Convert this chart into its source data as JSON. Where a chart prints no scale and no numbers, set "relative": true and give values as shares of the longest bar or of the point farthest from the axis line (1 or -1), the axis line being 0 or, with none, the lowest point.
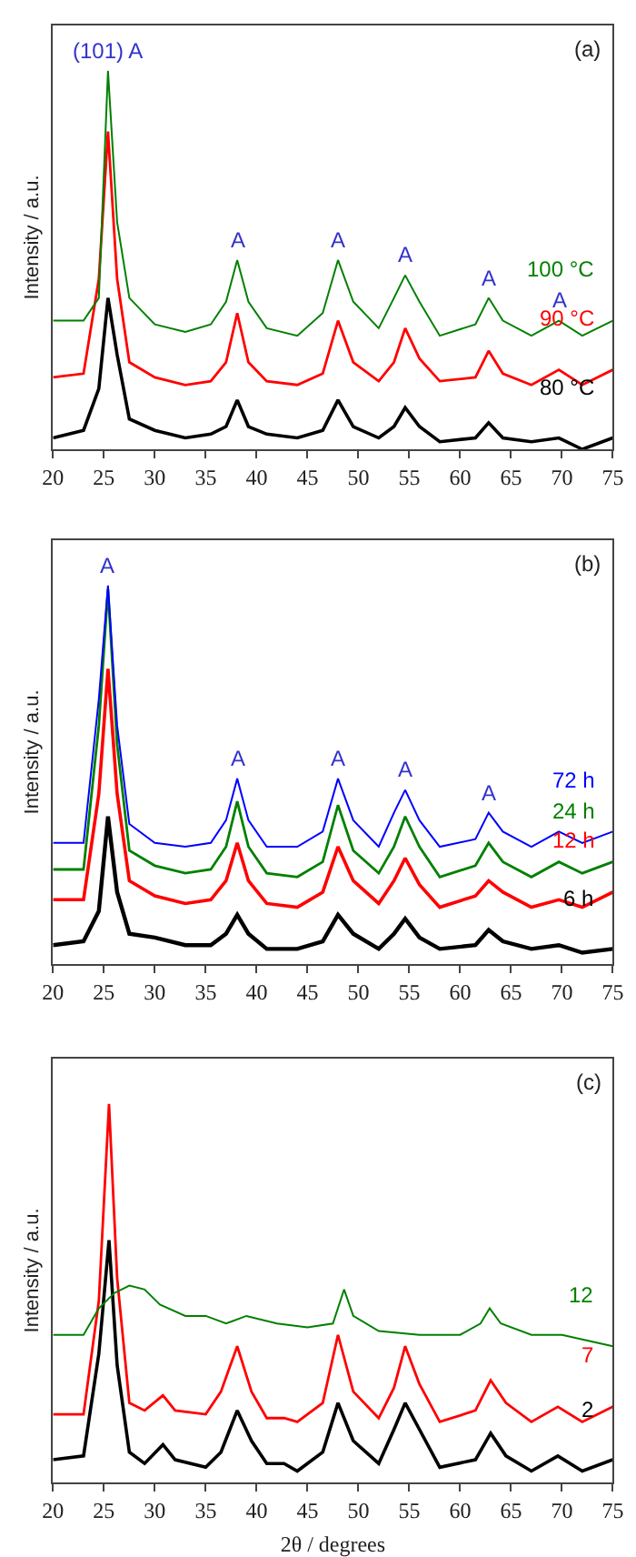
{
  "chart_data": [
    {
      "type": "line",
      "relative": true,
      "ylabel": "Intensity / a.u.",
      "xlim": [
        20,
        75
      ],
      "xticks": [
        20,
        25,
        30,
        35,
        40,
        45,
        50,
        55,
        60,
        65,
        70,
        75
      ],
      "x": [
        20,
        23,
        24.5,
        25.4,
        26.3,
        27.5,
        30,
        33,
        35.5,
        37,
        38.1,
        39.2,
        41,
        44,
        46.5,
        48,
        49.5,
        52,
        53.5,
        54.6,
        56,
        58,
        61.5,
        62.8,
        64.2,
        67,
        69.7,
        72,
        75
      ],
      "series": [
        {
          "name": "80 °C",
          "color": "#000000",
          "values": [
            0.03,
            0.05,
            0.16,
            0.4,
            0.25,
            0.08,
            0.05,
            0.03,
            0.04,
            0.06,
            0.13,
            0.06,
            0.04,
            0.03,
            0.05,
            0.13,
            0.06,
            0.03,
            0.06,
            0.11,
            0.06,
            0.02,
            0.03,
            0.07,
            0.03,
            0.02,
            0.03,
            0.0,
            0.03
          ]
        },
        {
          "name": "90 °C",
          "color": "#ff0000",
          "values": [
            0.19,
            0.2,
            0.45,
            0.84,
            0.45,
            0.23,
            0.19,
            0.17,
            0.18,
            0.23,
            0.36,
            0.23,
            0.18,
            0.17,
            0.2,
            0.34,
            0.23,
            0.18,
            0.23,
            0.32,
            0.24,
            0.18,
            0.19,
            0.26,
            0.2,
            0.17,
            0.21,
            0.17,
            0.21
          ]
        },
        {
          "name": "100 °C",
          "color": "#008000",
          "values": [
            0.34,
            0.34,
            0.4,
            1.0,
            0.6,
            0.4,
            0.33,
            0.31,
            0.33,
            0.39,
            0.5,
            0.39,
            0.32,
            0.3,
            0.36,
            0.5,
            0.39,
            0.32,
            0.4,
            0.46,
            0.39,
            0.3,
            0.33,
            0.4,
            0.34,
            0.3,
            0.34,
            0.3,
            0.34
          ]
        }
      ],
      "annotations": [
        {
          "text": "(101) A",
          "x": 25.4,
          "y": 1.0
        },
        {
          "text": "A",
          "x": 38.1,
          "y": 0.5
        },
        {
          "text": "A",
          "x": 48,
          "y": 0.5
        },
        {
          "text": "A",
          "x": 54.6,
          "y": 0.46
        },
        {
          "text": "A",
          "x": 62.8,
          "y": 0.4
        },
        {
          "text": "A",
          "x": 69.7,
          "y": 0.34
        },
        "(a)"
      ]
    },
    {
      "type": "line",
      "relative": true,
      "ylabel": "Intensity / a.u.",
      "xlim": [
        20,
        75
      ],
      "xticks": [
        20,
        25,
        30,
        35,
        40,
        45,
        50,
        55,
        60,
        65,
        70,
        75
      ],
      "x": [
        20,
        23,
        24.5,
        25.4,
        26.3,
        27.5,
        30,
        33,
        35.5,
        37,
        38.1,
        39.2,
        41,
        44,
        46.5,
        48,
        49.5,
        52,
        53.5,
        54.6,
        56,
        58,
        61.5,
        62.8,
        64.2,
        67,
        69.7,
        72,
        75
      ],
      "series": [
        {
          "name": "6 h",
          "color": "#000000",
          "values": [
            0.05,
            0.06,
            0.14,
            0.39,
            0.19,
            0.08,
            0.07,
            0.05,
            0.05,
            0.08,
            0.13,
            0.08,
            0.04,
            0.04,
            0.06,
            0.13,
            0.08,
            0.04,
            0.08,
            0.12,
            0.07,
            0.04,
            0.05,
            0.09,
            0.06,
            0.04,
            0.05,
            0.03,
            0.04
          ]
        },
        {
          "name": "12 h",
          "color": "#ff0000",
          "values": [
            0.17,
            0.17,
            0.45,
            0.78,
            0.45,
            0.22,
            0.18,
            0.16,
            0.17,
            0.22,
            0.32,
            0.22,
            0.16,
            0.15,
            0.19,
            0.31,
            0.22,
            0.16,
            0.22,
            0.28,
            0.21,
            0.15,
            0.18,
            0.22,
            0.19,
            0.15,
            0.17,
            0.15,
            0.19
          ]
        },
        {
          "name": "24 h",
          "color": "#008000",
          "values": [
            0.25,
            0.25,
            0.63,
            0.99,
            0.58,
            0.3,
            0.26,
            0.24,
            0.25,
            0.31,
            0.43,
            0.31,
            0.24,
            0.23,
            0.27,
            0.42,
            0.3,
            0.24,
            0.31,
            0.39,
            0.31,
            0.23,
            0.26,
            0.32,
            0.27,
            0.23,
            0.27,
            0.24,
            0.27
          ]
        },
        {
          "name": "72 h",
          "color": "#0000ff",
          "values": [
            0.32,
            0.32,
            0.7,
            1.0,
            0.63,
            0.37,
            0.32,
            0.31,
            0.32,
            0.38,
            0.49,
            0.38,
            0.31,
            0.31,
            0.35,
            0.49,
            0.38,
            0.31,
            0.4,
            0.46,
            0.38,
            0.31,
            0.33,
            0.4,
            0.35,
            0.31,
            0.35,
            0.32,
            0.35
          ]
        }
      ],
      "annotations": [
        {
          "text": "A",
          "x": 25.4,
          "y": 1.0
        },
        {
          "text": "A",
          "x": 38.1,
          "y": 0.49
        },
        {
          "text": "A",
          "x": 48,
          "y": 0.49
        },
        {
          "text": "A",
          "x": 54.6,
          "y": 0.46
        },
        {
          "text": "A",
          "x": 62.8,
          "y": 0.4
        },
        "(b)"
      ]
    },
    {
      "type": "line",
      "relative": true,
      "ylabel": "Intensity / a.u.",
      "xlabel": "2θ / degrees",
      "xlim": [
        20,
        75
      ],
      "xticks": [
        20,
        25,
        30,
        35,
        40,
        45,
        50,
        55,
        60,
        65,
        70,
        75
      ],
      "x": [
        20,
        23,
        24.5,
        25.5,
        26.3,
        27.5,
        29,
        30.8,
        32,
        35,
        36.5,
        38.1,
        39.5,
        41,
        42.7,
        44,
        46.5,
        48,
        49.5,
        52,
        53.5,
        54.6,
        56,
        58,
        61.5,
        63,
        64.5,
        67,
        69.6,
        72,
        75
      ],
      "series": [
        {
          "name": "2",
          "color": "#000000",
          "values": [
            0.06,
            0.07,
            0.34,
            0.64,
            0.31,
            0.08,
            0.05,
            0.1,
            0.06,
            0.04,
            0.08,
            0.19,
            0.11,
            0.05,
            0.05,
            0.03,
            0.08,
            0.21,
            0.11,
            0.05,
            0.14,
            0.21,
            0.14,
            0.04,
            0.06,
            0.13,
            0.07,
            0.03,
            0.07,
            0.03,
            0.06
          ]
        },
        {
          "name": "7",
          "color": "#ff0000",
          "values": [
            0.18,
            0.18,
            0.48,
            1.0,
            0.54,
            0.21,
            0.19,
            0.23,
            0.19,
            0.18,
            0.24,
            0.36,
            0.24,
            0.17,
            0.17,
            0.16,
            0.21,
            0.39,
            0.24,
            0.17,
            0.25,
            0.36,
            0.26,
            0.16,
            0.19,
            0.27,
            0.21,
            0.16,
            0.2,
            0.16,
            0.2
          ]
        },
        {
          "name": "12",
          "color": "#008000",
          "x": [
            20,
            23,
            24.5,
            26,
            27.5,
            29,
            30.5,
            33,
            35,
            37,
            39,
            42,
            45,
            47.5,
            48.6,
            49.5,
            52,
            56,
            60,
            62,
            62.9,
            64,
            67,
            70,
            75
          ],
          "values": [
            0.39,
            0.39,
            0.46,
            0.5,
            0.52,
            0.51,
            0.47,
            0.44,
            0.44,
            0.42,
            0.44,
            0.42,
            0.41,
            0.42,
            0.51,
            0.44,
            0.4,
            0.39,
            0.39,
            0.42,
            0.46,
            0.42,
            0.39,
            0.39,
            0.36
          ]
        }
      ],
      "annotations": [
        "(c)"
      ]
    }
  ]
}
